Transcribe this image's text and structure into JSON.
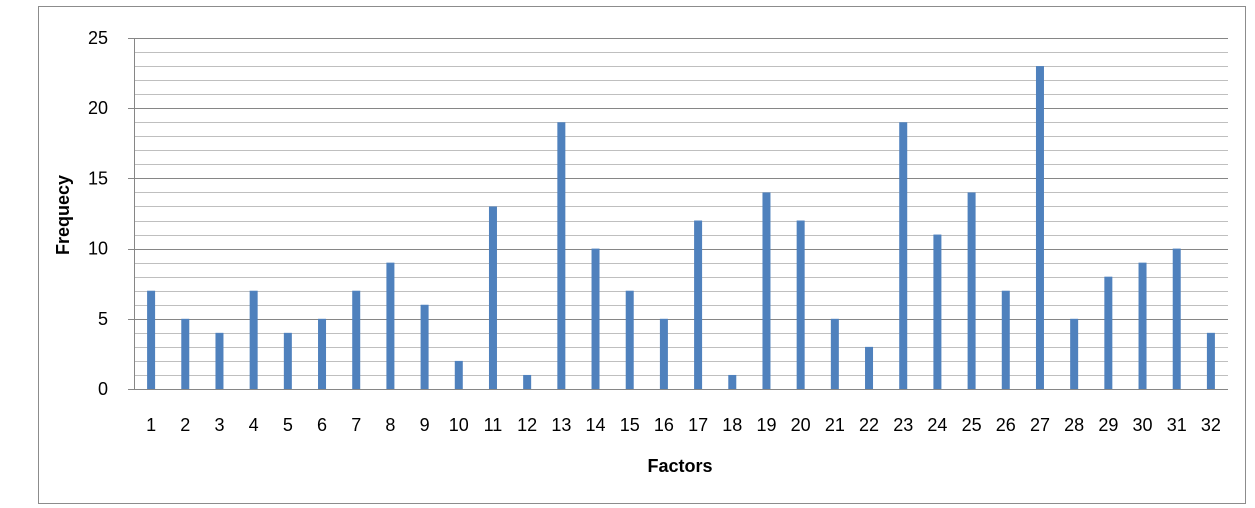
{
  "chart_data": {
    "type": "bar",
    "title": "",
    "xlabel": "Factors",
    "ylabel": "Frequecy",
    "categories": [
      "1",
      "2",
      "3",
      "4",
      "5",
      "6",
      "7",
      "8",
      "9",
      "10",
      "11",
      "12",
      "13",
      "14",
      "15",
      "16",
      "17",
      "18",
      "19",
      "20",
      "21",
      "22",
      "23",
      "24",
      "25",
      "26",
      "27",
      "28",
      "29",
      "30",
      "31",
      "32"
    ],
    "values": [
      7,
      5,
      4,
      7,
      4,
      5,
      7,
      9,
      6,
      2,
      13,
      1,
      19,
      10,
      7,
      5,
      12,
      1,
      14,
      12,
      5,
      3,
      19,
      11,
      14,
      7,
      23,
      5,
      8,
      9,
      10,
      4
    ],
    "ylim": [
      0,
      25
    ],
    "yticks": [
      0,
      5,
      10,
      15,
      20,
      25
    ],
    "minor_step": 1,
    "grid": "horizontal",
    "legend": "none",
    "colors": {
      "bar": "#4f81bd",
      "major_grid": "#868686",
      "minor_grid": "#bfbfbf",
      "axis": "#868686",
      "frame": "#8c8c8c"
    }
  }
}
